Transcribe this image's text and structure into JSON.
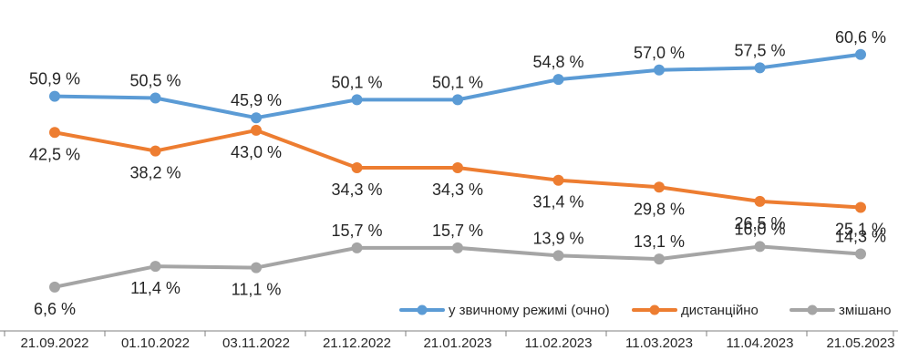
{
  "colors": {
    "series_1": "#5B9BD5",
    "series_2": "#ED7D31",
    "series_3": "#A5A5A5",
    "axis": "#7F7F7F",
    "text": "#262626"
  },
  "chart_data": {
    "type": "line",
    "title": "",
    "xlabel": "",
    "ylabel": "",
    "x": [
      "21.09.2022",
      "01.10.2022",
      "03.11.2022",
      "21.12.2022",
      "21.01.2023",
      "11.02.2023",
      "11.03.2023",
      "11.04.2023",
      "21.05.2023"
    ],
    "ylim": [
      0,
      65
    ],
    "grid": false,
    "legend_position": "bottom-right",
    "series": [
      {
        "name": "у звичному режимі (очно)",
        "color": "#5B9BD5",
        "values": [
          50.9,
          50.5,
          45.9,
          50.1,
          50.1,
          54.8,
          57.0,
          57.5,
          60.6
        ],
        "labels": [
          "50,9 %",
          "50,5 %",
          "45,9 %",
          "50,1 %",
          "50,1 %",
          "54,8 %",
          "57,0 %",
          "57,5 %",
          "60,6 %"
        ],
        "label_positions": [
          "above",
          "above",
          "above",
          "above",
          "above",
          "above",
          "above",
          "above",
          "above"
        ]
      },
      {
        "name": "дистанційно",
        "color": "#ED7D31",
        "values": [
          42.5,
          38.2,
          43.0,
          34.3,
          34.3,
          31.4,
          29.8,
          26.5,
          25.1
        ],
        "labels": [
          "42,5 %",
          "38,2 %",
          "43,0 %",
          "34,3 %",
          "34,3 %",
          "31,4 %",
          "29,8 %",
          "26,5 %",
          "25,1 %"
        ],
        "label_positions": [
          "below",
          "below",
          "below",
          "below",
          "below",
          "below",
          "below",
          "below",
          "below"
        ]
      },
      {
        "name": "змішано",
        "color": "#A5A5A5",
        "values": [
          6.6,
          11.4,
          11.1,
          15.7,
          15.7,
          13.9,
          13.1,
          16.0,
          14.3
        ],
        "labels": [
          "6,6 %",
          "11,4 %",
          "11,1 %",
          "15,7 %",
          "15,7 %",
          "13,9 %",
          "13,1 %",
          "16,0 %",
          "14,3 %"
        ],
        "label_positions": [
          "below",
          "below",
          "below",
          "above",
          "above",
          "above",
          "above",
          "above",
          "above"
        ]
      }
    ]
  }
}
